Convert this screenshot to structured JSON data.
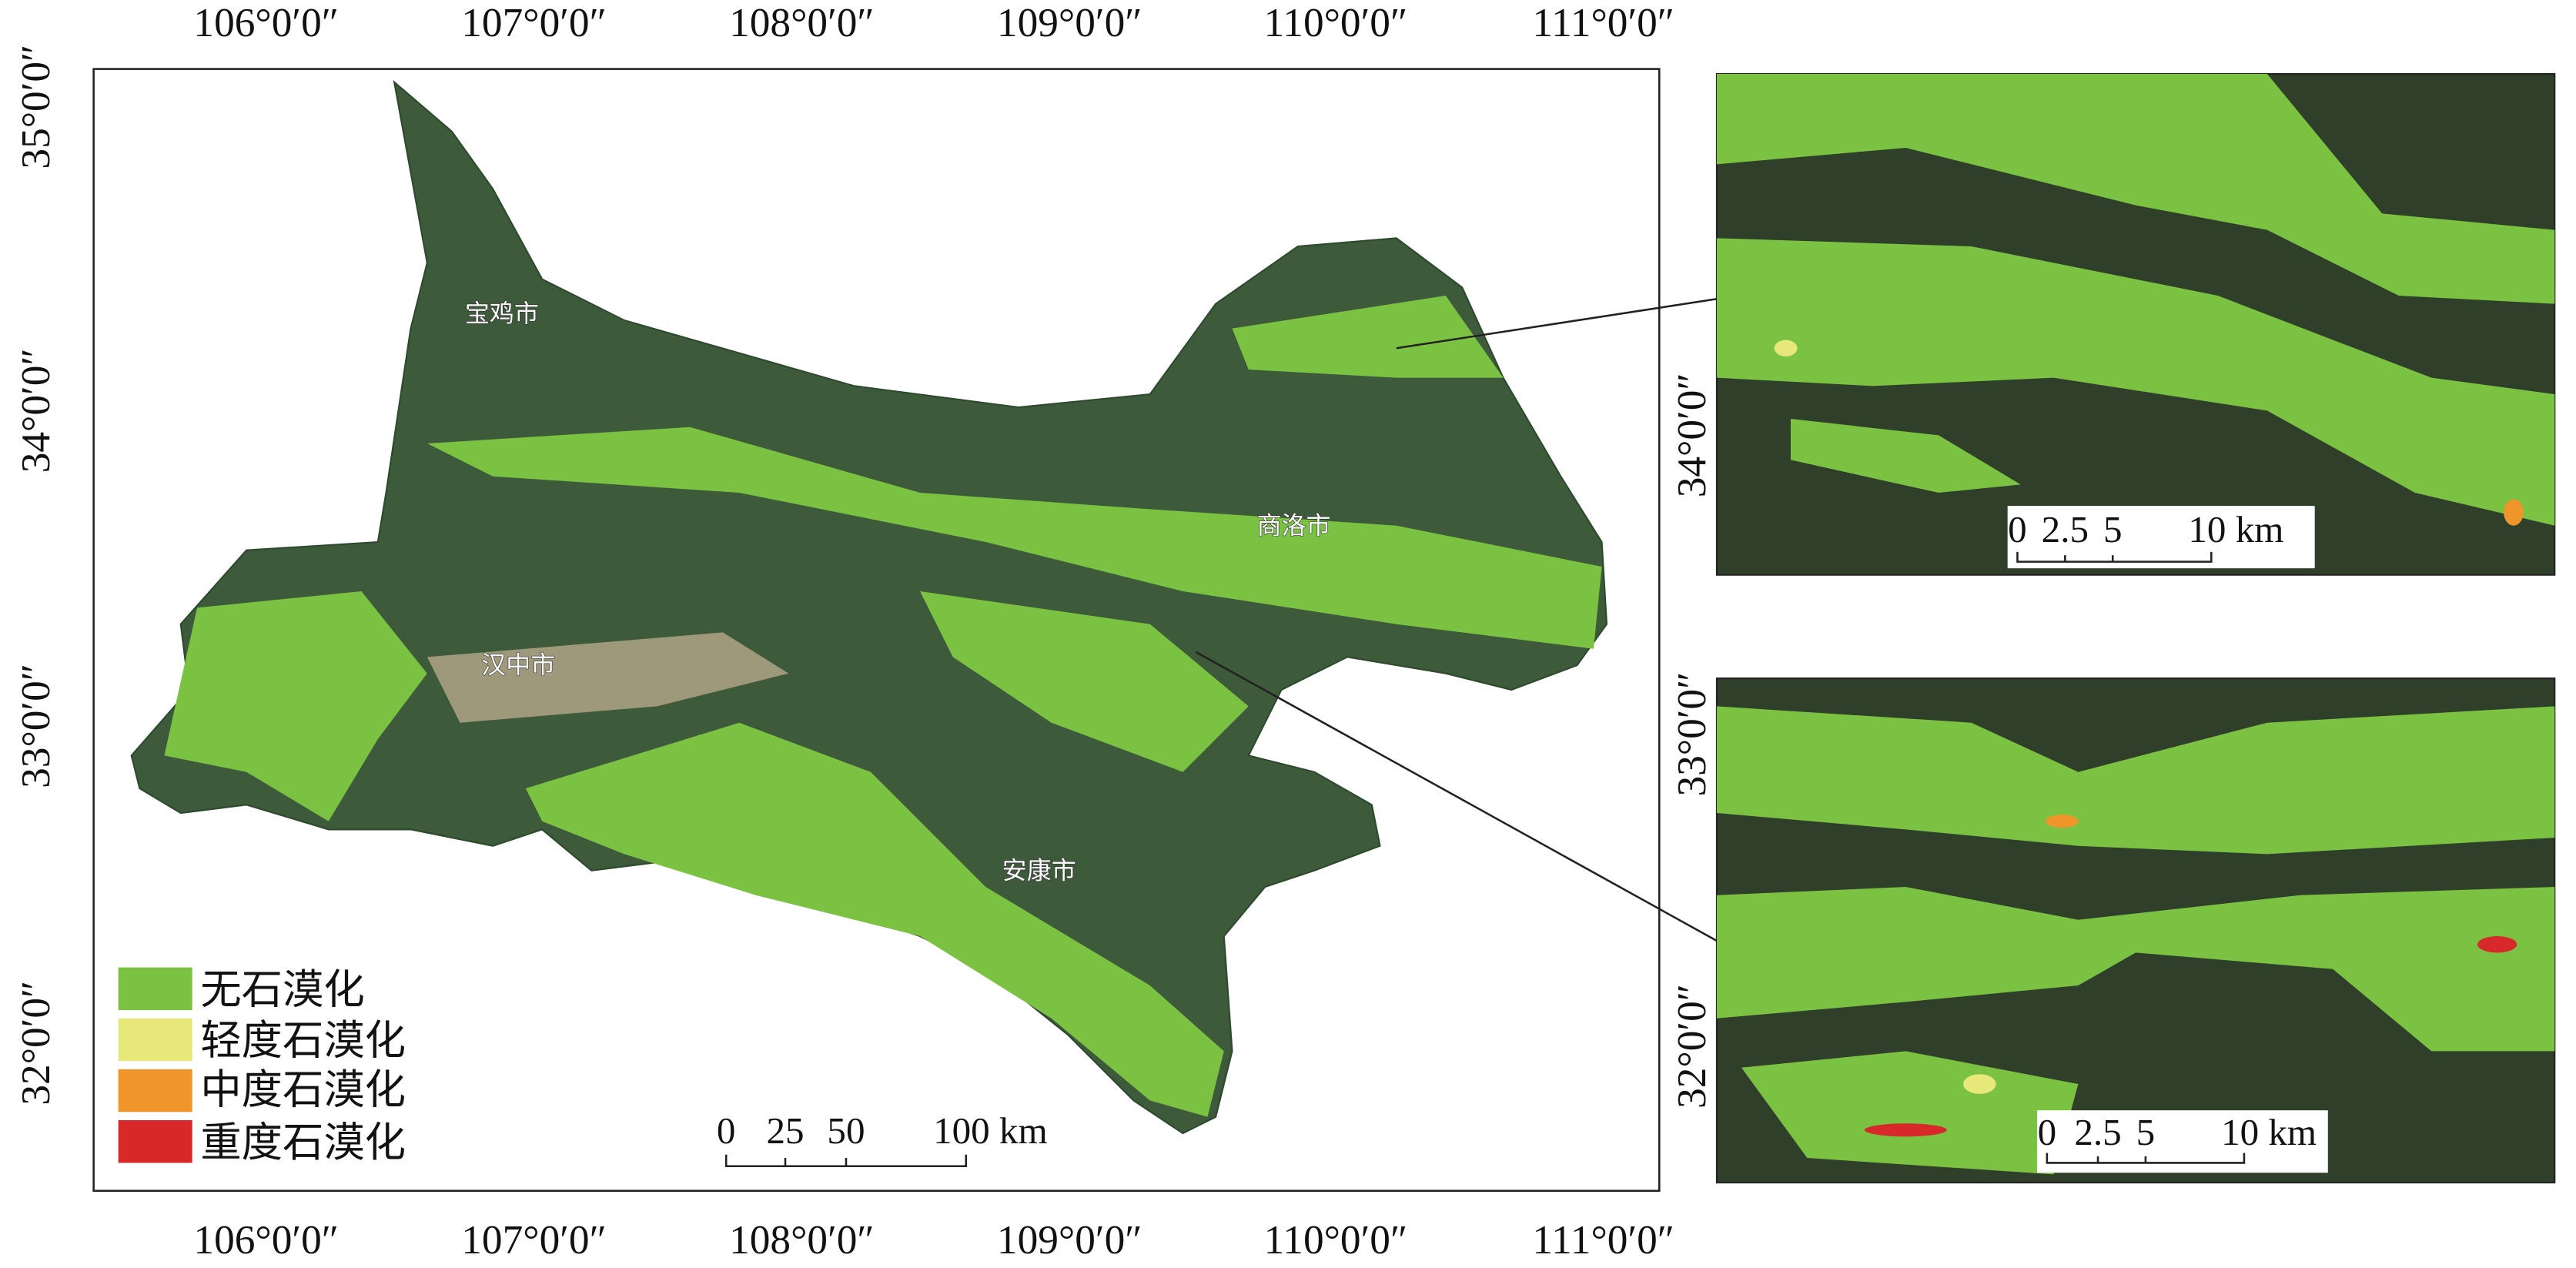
{
  "main_map": {
    "top_lon_labels": [
      "106°0′0″",
      "107°0′0″",
      "108°0′0″",
      "109°0′0″",
      "110°0′0″",
      "111°0′0″"
    ],
    "bottom_lon_labels": [
      "106°0′0″",
      "107°0′0″",
      "108°0′0″",
      "109°0′0″",
      "110°0′0″",
      "111°0′0″"
    ],
    "lat_labels": [
      "35°0′0″",
      "34°0′0″",
      "33°0′0″",
      "32°0′0″"
    ],
    "cities": [
      "宝鸡市",
      "商洛市",
      "汉中市",
      "安康市"
    ],
    "legend": [
      "无石漠化",
      "轻度石漠化",
      "中度石漠化",
      "重度石漠化"
    ],
    "scale_bar": [
      "0",
      "25",
      "50",
      "100 km"
    ]
  },
  "insets": [
    {
      "lat_labels": [
        "34°0′0″"
      ],
      "scale_bar": [
        "0",
        "2.5",
        "5",
        "10 km"
      ]
    },
    {
      "lat_labels": [
        "33°0′0″",
        "32°0′0″"
      ],
      "scale_bar": [
        "0",
        "2.5",
        "5",
        "10 km"
      ]
    }
  ]
}
